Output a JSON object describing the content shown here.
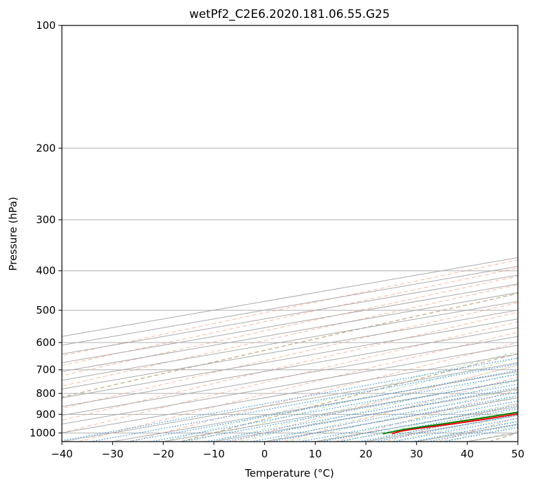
{
  "chart_data": {
    "type": "line",
    "subtype": "skew-t log-p sounding",
    "title": "wetPf2_C2E6.2020.181.06.55.G25",
    "xlabel": "Temperature (°C)",
    "ylabel": "Pressure (hPa)",
    "xlim": [
      -40,
      50
    ],
    "ylim": [
      1050,
      100
    ],
    "grid": true,
    "xticks": [
      -40,
      -30,
      -20,
      -10,
      0,
      10,
      20,
      30,
      40,
      50
    ],
    "yticks": [
      100,
      200,
      300,
      400,
      500,
      600,
      700,
      800,
      900,
      1000
    ],
    "xtick_labels": [
      "−40",
      "−30",
      "−20",
      "−10",
      "0",
      "10",
      "20",
      "30",
      "40",
      "50"
    ],
    "ytick_labels": [
      "100",
      "200",
      "300",
      "400",
      "500",
      "600",
      "700",
      "800",
      "900",
      "1000"
    ],
    "series": [
      {
        "name": "Temperature",
        "color": "#ff0000",
        "points": [
          [
            1005,
            16.3
          ],
          [
            990,
            14.9
          ],
          [
            975,
            15.3
          ],
          [
            950,
            17.0
          ],
          [
            925,
            18.0
          ],
          [
            900,
            18.3
          ],
          [
            870,
            17.8
          ],
          [
            820,
            16.0
          ],
          [
            780,
            14.8
          ],
          [
            730,
            14.4
          ],
          [
            700,
            14.4
          ],
          [
            650,
            14.1
          ],
          [
            600,
            13.5
          ],
          [
            550,
            13.1
          ],
          [
            500,
            12.0
          ],
          [
            470,
            9.8
          ],
          [
            430,
            6.5
          ],
          [
            400,
            3.6
          ],
          [
            350,
            -2.0
          ],
          [
            300,
            -8.5
          ],
          [
            275,
            -13.5
          ],
          [
            250,
            -18.0
          ],
          [
            220,
            -22.5
          ],
          [
            205,
            -26.0
          ],
          [
            200,
            -25.5
          ],
          [
            190,
            -23.0
          ],
          [
            170,
            -22.0
          ],
          [
            150,
            -22.5
          ],
          [
            130,
            -23.0
          ],
          [
            110,
            -24.0
          ],
          [
            100,
            -26.0
          ]
        ]
      },
      {
        "name": "Dewpoint",
        "color": "#008000",
        "points": [
          [
            1005,
            14.5
          ],
          [
            980,
            13.6
          ],
          [
            950,
            15.0
          ],
          [
            920,
            16.0
          ],
          [
            890,
            16.5
          ],
          [
            850,
            16.0
          ],
          [
            800,
            15.0
          ],
          [
            750,
            13.0
          ],
          [
            700,
            10.0
          ],
          [
            650,
            6.5
          ],
          [
            630,
            4.0
          ],
          [
            600,
            -1.5
          ],
          [
            570,
            -4.0
          ],
          [
            530,
            -6.5
          ],
          [
            500,
            -10.3
          ],
          [
            470,
            -15.5
          ],
          [
            440,
            -20.0
          ],
          [
            420,
            -22.0
          ],
          [
            380,
            -22.0
          ],
          [
            350,
            -26.5
          ],
          [
            320,
            -34.0
          ],
          [
            300,
            -40.0
          ],
          [
            280,
            -42.0
          ],
          [
            250,
            -43.0
          ],
          [
            230,
            -45.0
          ],
          [
            210,
            -49.0
          ],
          [
            200,
            -53.0
          ],
          [
            185,
            -60.0
          ],
          [
            170,
            -66.0
          ],
          [
            150,
            -68.0
          ],
          [
            135,
            -72.0
          ],
          [
            120,
            -75.0
          ],
          [
            110,
            -75.0
          ],
          [
            100,
            -75.5
          ]
        ]
      }
    ],
    "reference_lines": {
      "dry_adiabats_c": [
        -100,
        -90,
        -80,
        -70,
        -60,
        -50,
        -40,
        -30,
        -20,
        -10,
        0,
        10,
        20,
        30,
        40
      ],
      "mixing_ratios_gkg": [
        "0.1",
        "0.2",
        "0.4",
        "0.6",
        "1",
        "1.5",
        "2",
        "3",
        "4",
        "6",
        "8",
        "10",
        "13",
        "16",
        "20",
        "25",
        "30",
        "36"
      ]
    }
  }
}
